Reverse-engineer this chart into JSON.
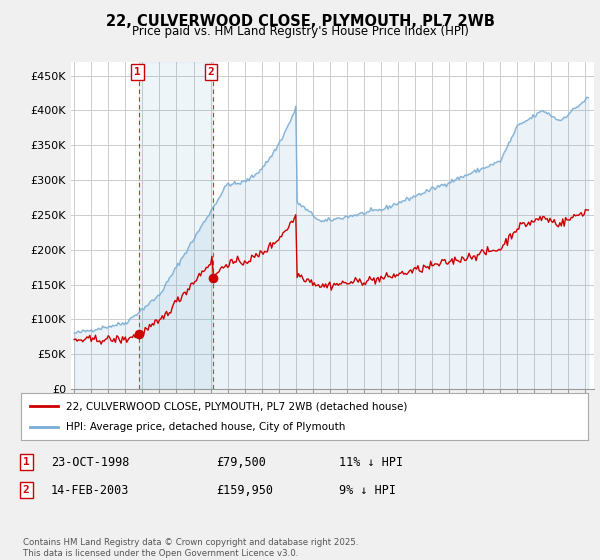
{
  "title": "22, CULVERWOOD CLOSE, PLYMOUTH, PL7 2WB",
  "subtitle": "Price paid vs. HM Land Registry's House Price Index (HPI)",
  "ylabel_ticks": [
    "£0",
    "£50K",
    "£100K",
    "£150K",
    "£200K",
    "£250K",
    "£300K",
    "£350K",
    "£400K",
    "£450K"
  ],
  "ytick_vals": [
    0,
    50000,
    100000,
    150000,
    200000,
    250000,
    300000,
    350000,
    400000,
    450000
  ],
  "ylim": [
    0,
    470000
  ],
  "xlim_start": 1994.8,
  "xlim_end": 2025.5,
  "purchase1_x": 1998.81,
  "purchase1_y": 79500,
  "purchase2_x": 2003.12,
  "purchase2_y": 159950,
  "purchase1_label": "1",
  "purchase2_label": "2",
  "legend_line1": "22, CULVERWOOD CLOSE, PLYMOUTH, PL7 2WB (detached house)",
  "legend_line2": "HPI: Average price, detached house, City of Plymouth",
  "table_row1_num": "1",
  "table_row1_date": "23-OCT-1998",
  "table_row1_price": "£79,500",
  "table_row1_hpi": "11% ↓ HPI",
  "table_row2_num": "2",
  "table_row2_date": "14-FEB-2003",
  "table_row2_price": "£159,950",
  "table_row2_hpi": "9% ↓ HPI",
  "footnote": "Contains HM Land Registry data © Crown copyright and database right 2025.\nThis data is licensed under the Open Government Licence v3.0.",
  "line_color_price": "#cc0000",
  "line_color_hpi": "#7aadd4",
  "bg_color": "#f0f0f0",
  "plot_bg": "#ffffff",
  "grid_color": "#cccccc"
}
